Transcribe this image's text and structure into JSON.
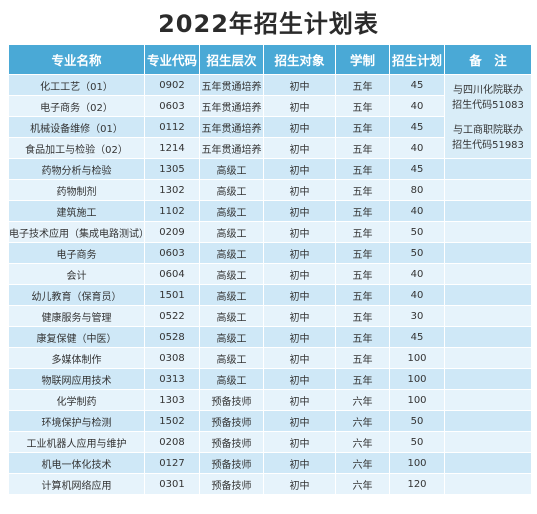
{
  "title": "2022年招生计划表",
  "headers": [
    "专业名称",
    "专业代码",
    "招生层次",
    "招生对象",
    "学制",
    "招生计划",
    "备　注"
  ],
  "rows": [
    {
      "name": "化工工艺（01）",
      "code": "0902",
      "level": "五年贯通培养",
      "target": "初中",
      "years": "五年",
      "plan": "45"
    },
    {
      "name": "电子商务（02）",
      "code": "0603",
      "level": "五年贯通培养",
      "target": "初中",
      "years": "五年",
      "plan": "40"
    },
    {
      "name": "机械设备维修（01）",
      "code": "0112",
      "level": "五年贯通培养",
      "target": "初中",
      "years": "五年",
      "plan": "45"
    },
    {
      "name": "食品加工与检验（02）",
      "code": "1214",
      "level": "五年贯通培养",
      "target": "初中",
      "years": "五年",
      "plan": "40"
    },
    {
      "name": "药物分析与检验",
      "code": "1305",
      "level": "高级工",
      "target": "初中",
      "years": "五年",
      "plan": "45"
    },
    {
      "name": "药物制剂",
      "code": "1302",
      "level": "高级工",
      "target": "初中",
      "years": "五年",
      "plan": "80"
    },
    {
      "name": "建筑施工",
      "code": "1102",
      "level": "高级工",
      "target": "初中",
      "years": "五年",
      "plan": "40"
    },
    {
      "name": "电子技术应用（集成电路测试）",
      "code": "0209",
      "level": "高级工",
      "target": "初中",
      "years": "五年",
      "plan": "50"
    },
    {
      "name": "电子商务",
      "code": "0603",
      "level": "高级工",
      "target": "初中",
      "years": "五年",
      "plan": "50"
    },
    {
      "name": "会计",
      "code": "0604",
      "level": "高级工",
      "target": "初中",
      "years": "五年",
      "plan": "40"
    },
    {
      "name": "幼儿教育（保育员）",
      "code": "1501",
      "level": "高级工",
      "target": "初中",
      "years": "五年",
      "plan": "40"
    },
    {
      "name": "健康服务与管理",
      "code": "0522",
      "level": "高级工",
      "target": "初中",
      "years": "五年",
      "plan": "30"
    },
    {
      "name": "康复保健（中医）",
      "code": "0528",
      "level": "高级工",
      "target": "初中",
      "years": "五年",
      "plan": "45"
    },
    {
      "name": "多媒体制作",
      "code": "0308",
      "level": "高级工",
      "target": "初中",
      "years": "五年",
      "plan": "100"
    },
    {
      "name": "物联网应用技术",
      "code": "0313",
      "level": "高级工",
      "target": "初中",
      "years": "五年",
      "plan": "100"
    },
    {
      "name": "化学制药",
      "code": "1303",
      "level": "预备技师",
      "target": "初中",
      "years": "六年",
      "plan": "100"
    },
    {
      "name": "环境保护与检测",
      "code": "1502",
      "level": "预备技师",
      "target": "初中",
      "years": "六年",
      "plan": "50"
    },
    {
      "name": "工业机器人应用与维护",
      "code": "0208",
      "level": "预备技师",
      "target": "初中",
      "years": "六年",
      "plan": "50"
    },
    {
      "name": "机电一体化技术",
      "code": "0127",
      "level": "预备技师",
      "target": "初中",
      "years": "六年",
      "plan": "100"
    },
    {
      "name": "计算机网络应用",
      "code": "0301",
      "level": "预备技师",
      "target": "初中",
      "years": "六年",
      "plan": "120"
    }
  ],
  "notes": [
    {
      "line1": "与四川化院联办",
      "line2": "招生代码51083"
    },
    {
      "line1": "与工商职院联办",
      "line2": "招生代码51983"
    }
  ]
}
